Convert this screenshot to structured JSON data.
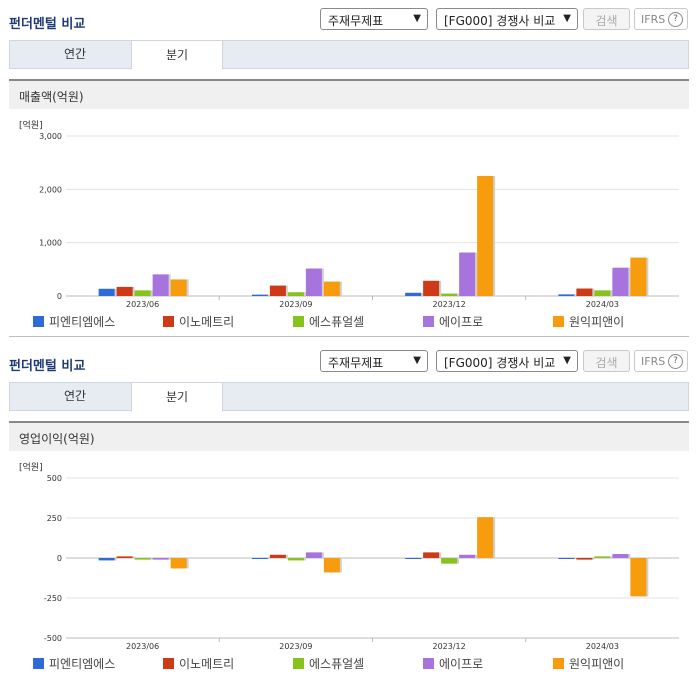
{
  "panels": [
    {
      "title": "펀더멘털 비교",
      "select1": "주재무제표",
      "select2": "[FG000] 경쟁사 비교",
      "search": "검색",
      "ifrs": "IFRS",
      "tabs": [
        "연간",
        "분기"
      ],
      "active_tab": 1,
      "section": "매출액(억원)",
      "unit": "[억원]"
    },
    {
      "title": "펀더멘털 비교",
      "select1": "주재무제표",
      "select2": "[FG000] 경쟁사 비교",
      "search": "검색",
      "ifrs": "IFRS",
      "tabs": [
        "연간",
        "분기"
      ],
      "active_tab": 1,
      "section": "영업이익(억원)",
      "unit": "[억원]"
    }
  ],
  "colors": [
    "#2e6bd6",
    "#cc3a16",
    "#88c21c",
    "#a774dd",
    "#f79c0d"
  ],
  "chart_data": [
    {
      "type": "bar",
      "title": "매출액(억원)",
      "ylabel": "[억원]",
      "categories": [
        "2023/06",
        "2023/09",
        "2023/12",
        "2024/03"
      ],
      "ylim": [
        0,
        3000
      ],
      "yticks": [
        "0",
        "1,000",
        "2,000",
        "3,000"
      ],
      "ytick_values": [
        0,
        1000,
        2000,
        3000
      ],
      "series": [
        {
          "name": "피엔티엠에스",
          "values": [
            135,
            25,
            60,
            30
          ]
        },
        {
          "name": "이노메트리",
          "values": [
            170,
            195,
            285,
            140
          ]
        },
        {
          "name": "에스퓨얼셀",
          "values": [
            105,
            70,
            45,
            105
          ]
        },
        {
          "name": "에이프로",
          "values": [
            405,
            515,
            815,
            530
          ]
        },
        {
          "name": "원익피앤이",
          "values": [
            310,
            270,
            2250,
            720
          ]
        }
      ]
    },
    {
      "type": "bar",
      "title": "영업이익(억원)",
      "ylabel": "[억원]",
      "categories": [
        "2023/06",
        "2023/09",
        "2023/12",
        "2024/03"
      ],
      "ylim": [
        -500,
        500
      ],
      "yticks": [
        "-500",
        "-250",
        "0",
        "250",
        "500"
      ],
      "ytick_values": [
        -500,
        -250,
        0,
        250,
        500
      ],
      "series": [
        {
          "name": "피엔티엠에스",
          "values": [
            -15,
            -5,
            -5,
            -5
          ]
        },
        {
          "name": "이노메트리",
          "values": [
            10,
            20,
            35,
            -10
          ]
        },
        {
          "name": "에스퓨얼셀",
          "values": [
            -10,
            -15,
            -35,
            10
          ]
        },
        {
          "name": "에이프로",
          "values": [
            -10,
            35,
            20,
            25
          ]
        },
        {
          "name": "원익피앤이",
          "values": [
            -65,
            -90,
            255,
            -240
          ]
        }
      ]
    }
  ]
}
